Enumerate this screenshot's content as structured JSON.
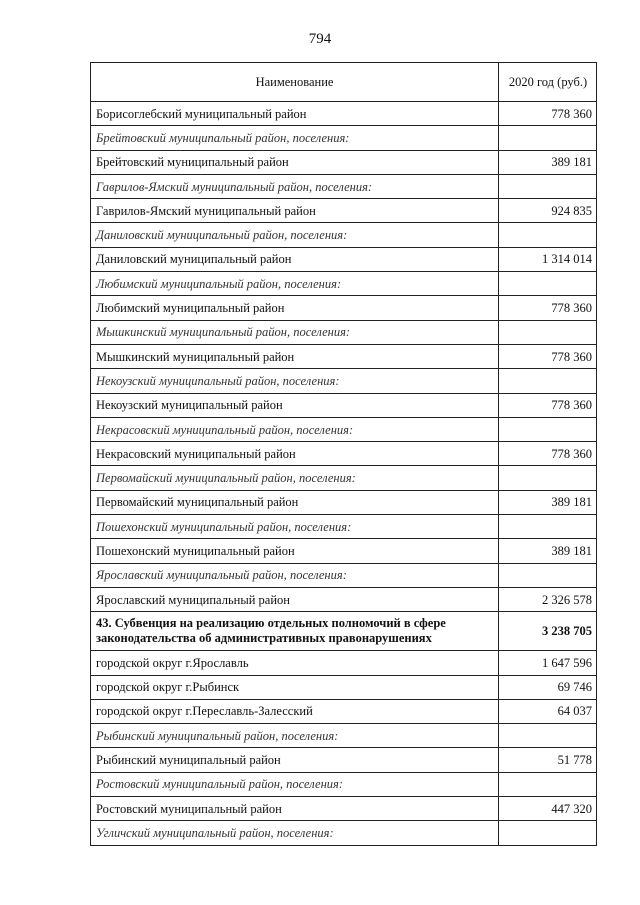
{
  "page_number": "794",
  "table": {
    "headers": [
      "Наименование",
      "2020 год (руб.)"
    ],
    "rows": [
      {
        "name": "Борисоглебский муниципальный район",
        "value": "778 360",
        "style": "normal"
      },
      {
        "name": "Брейтовский муниципальный район, поселения:",
        "value": "",
        "style": "italic"
      },
      {
        "name": "Брейтовский муниципальный район",
        "value": "389 181",
        "style": "normal"
      },
      {
        "name": "Гаврилов-Ямский муниципальный район, поселения:",
        "value": "",
        "style": "italic"
      },
      {
        "name": "Гаврилов-Ямский муниципальный район",
        "value": "924 835",
        "style": "normal"
      },
      {
        "name": "Даниловский муниципальный район, поселения:",
        "value": "",
        "style": "italic"
      },
      {
        "name": "Даниловский муниципальный район",
        "value": "1 314 014",
        "style": "normal"
      },
      {
        "name": "Любимский муниципальный район, поселения:",
        "value": "",
        "style": "italic"
      },
      {
        "name": "Любимский муниципальный район",
        "value": "778 360",
        "style": "normal"
      },
      {
        "name": "Мышкинский муниципальный район, поселения:",
        "value": "",
        "style": "italic"
      },
      {
        "name": "Мышкинский муниципальный район",
        "value": "778 360",
        "style": "normal"
      },
      {
        "name": "Некоузский муниципальный район, поселения:",
        "value": "",
        "style": "italic"
      },
      {
        "name": "Некоузский муниципальный район",
        "value": "778 360",
        "style": "normal"
      },
      {
        "name": "Некрасовский муниципальный район, поселения:",
        "value": "",
        "style": "italic"
      },
      {
        "name": "Некрасовский муниципальный район",
        "value": "778 360",
        "style": "normal"
      },
      {
        "name": "Первомайский муниципальный район, поселения:",
        "value": "",
        "style": "italic"
      },
      {
        "name": "Первомайский муниципальный район",
        "value": "389 181",
        "style": "normal"
      },
      {
        "name": "Пошехонский муниципальный район, поселения:",
        "value": "",
        "style": "italic"
      },
      {
        "name": "Пошехонский муниципальный район",
        "value": "389 181",
        "style": "normal"
      },
      {
        "name": "Ярославский муниципальный район, поселения:",
        "value": "",
        "style": "italic"
      },
      {
        "name": "Ярославский муниципальный район",
        "value": "2 326 578",
        "style": "normal"
      },
      {
        "name": "43. Субвенция на реализацию отдельных полномочий в сфере законодательства об административных правонарушениях",
        "value": "3 238 705",
        "style": "bold"
      },
      {
        "name": "городской округ г.Ярославль",
        "value": "1 647 596",
        "style": "normal"
      },
      {
        "name": "городской округ г.Рыбинск",
        "value": "69 746",
        "style": "normal"
      },
      {
        "name": "городской округ г.Переславль-Залесский",
        "value": "64 037",
        "style": "normal"
      },
      {
        "name": "Рыбинский муниципальный район, поселения:",
        "value": "",
        "style": "italic"
      },
      {
        "name": "Рыбинский муниципальный район",
        "value": "51 778",
        "style": "normal"
      },
      {
        "name": "Ростовский муниципальный район, поселения:",
        "value": "",
        "style": "italic"
      },
      {
        "name": "Ростовский муниципальный район",
        "value": "447 320",
        "style": "normal"
      },
      {
        "name": "Угличский муниципальный район, поселения:",
        "value": "",
        "style": "italic"
      }
    ]
  }
}
